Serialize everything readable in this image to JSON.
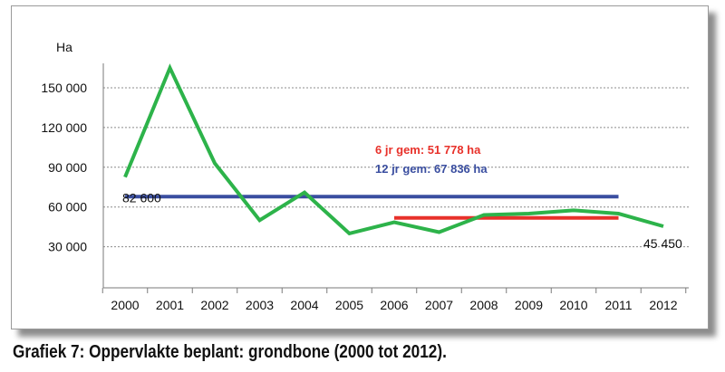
{
  "chart_data": {
    "type": "line",
    "ylabel": "Ha",
    "ylim": [
      0,
      165000
    ],
    "yticks": [
      30000,
      60000,
      90000,
      120000,
      150000
    ],
    "ytick_labels": [
      "30 000",
      "60 000",
      "90 000",
      "120 000",
      "150 000"
    ],
    "categories": [
      "2000",
      "2001",
      "2002",
      "2003",
      "2004",
      "2005",
      "2006",
      "2007",
      "2008",
      "2009",
      "2010",
      "2011",
      "2012"
    ],
    "grid": true,
    "series": [
      {
        "values": [
          82600,
          165000,
          93000,
          50000,
          71000,
          40000,
          48500,
          41000,
          54000,
          55000,
          57500,
          55000,
          45450
        ],
        "color": "#2db34a"
      },
      {
        "name": "12 jr gem: 67 836 ha",
        "x_range": [
          "2000",
          "2011"
        ],
        "value": 67836,
        "color": "#3a4ea0"
      },
      {
        "name": "6 jr gem: 51 778 ha",
        "x_range": [
          "2006",
          "2011"
        ],
        "value": 51778,
        "color": "#e8312a"
      }
    ],
    "annotations": [
      {
        "text": "82 600",
        "x": "2000",
        "y": 82600
      },
      {
        "text": "45 450",
        "x": "2012",
        "y": 45450
      }
    ]
  },
  "caption": "Grafiek 7: Oppervlakte beplant: grondbone (2000 tot 2012)."
}
